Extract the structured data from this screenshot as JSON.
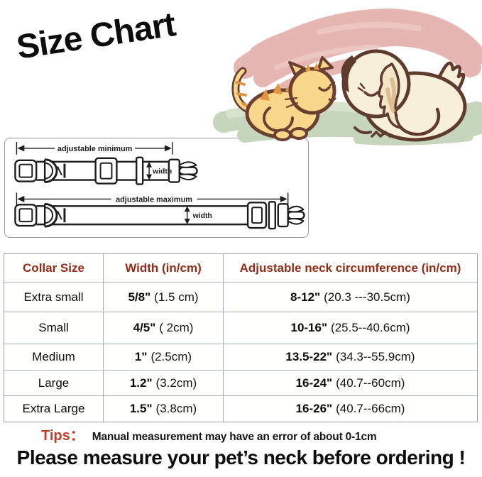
{
  "title": "Size Chart",
  "illustration_name": "sleeping-cat-and-dog-illustration",
  "diagram": {
    "label_min": "adjustable minimum",
    "label_max": "adjustable maximum",
    "label_width_top": "width",
    "label_width_bottom": "width"
  },
  "table": {
    "headers": [
      "Collar Size",
      "Width (in/cm)",
      "Adjustable neck circumference  (in/cm)"
    ],
    "rows": [
      {
        "size": "Extra small",
        "width_in": "5/8\"",
        "width_cm": "(1.5 cm)",
        "neck_in": "8-12\"",
        "neck_cm": "(20.3 ---30.5cm)"
      },
      {
        "size": "Small",
        "width_in": "4/5\"",
        "width_cm": "( 2cm)",
        "neck_in": "10-16\"",
        "neck_cm": "(25.5--40.6cm)"
      },
      {
        "size": "Medium",
        "width_in": "1\"",
        "width_cm": "(2.5cm)",
        "neck_in": "13.5-22\"",
        "neck_cm": "(34.3--55.9cm)"
      },
      {
        "size": "Large",
        "width_in": "1.2\"",
        "width_cm": "(3.2cm)",
        "neck_in": "16-24\"",
        "neck_cm": "(40.7--60cm)"
      },
      {
        "size": "Extra Large",
        "width_in": "1.5\"",
        "width_cm": "(3.8cm)",
        "neck_in": "16-26\"",
        "neck_cm": "(40.7--66cm)"
      }
    ]
  },
  "tips": {
    "label": "Tips：",
    "text": "Manual measurement may have an error of about 0-1cm"
  },
  "footer": "Please measure your pet’s neck before ordering !",
  "colors": {
    "header_red": "#942d18",
    "tips_red": "#c43b26",
    "table_border": "#aab1c1",
    "pink_scribble": "#e5b4ae",
    "grass_green": "#c3d4ba",
    "cat_fur": "#f8d78b",
    "cat_stripe": "#e2953f",
    "dog_fur": "#f8efda",
    "outline_brown": "#5f3b2e"
  }
}
